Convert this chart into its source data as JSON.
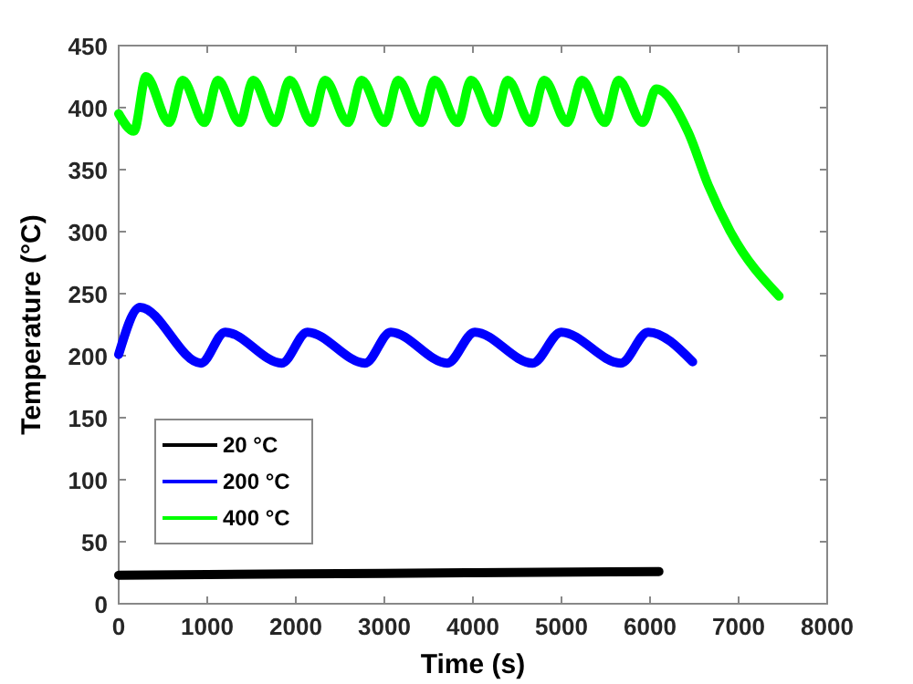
{
  "chart_data": {
    "type": "line",
    "xlabel": "Time (s)",
    "ylabel": "Temperature (°C)",
    "xlim": [
      0,
      8000
    ],
    "ylim": [
      0,
      450
    ],
    "xticks": [
      0,
      1000,
      2000,
      3000,
      4000,
      5000,
      6000,
      7000,
      8000
    ],
    "yticks": [
      0,
      50,
      100,
      150,
      200,
      250,
      300,
      350,
      400,
      450
    ],
    "legend": "bottom left",
    "grid": false,
    "series": [
      {
        "name": "20 °C",
        "color": "#000000",
        "x": [
          0,
          2000,
          4000,
          6100
        ],
        "values": [
          23,
          24,
          25,
          26
        ]
      },
      {
        "name": "200 °C",
        "color": "#0000ff",
        "x": [
          0,
          241,
          928,
          1203,
          1842,
          2131,
          2782,
          3072,
          3711,
          4021,
          4674,
          4997,
          5670,
          5979,
          6481
        ],
        "values": [
          201,
          239,
          194,
          219,
          194,
          219,
          194,
          219,
          194,
          219,
          194,
          219,
          194,
          219,
          195
        ]
      },
      {
        "name": "400 °C",
        "color": "#00ff00",
        "x": [
          0,
          172,
          309,
          570,
          722,
          969,
          1120,
          1368,
          1519,
          1766,
          1931,
          2179,
          2330,
          2591,
          2742,
          3004,
          3155,
          3416,
          3567,
          3828,
          3979,
          4241,
          4392,
          4653,
          4804,
          5065,
          5230,
          5491,
          5643,
          5918,
          6069,
          6426,
          6660,
          6907,
          7457
        ],
        "values": [
          395,
          381,
          425,
          388,
          422,
          388,
          422,
          388,
          422,
          388,
          422,
          388,
          422,
          388,
          422,
          388,
          422,
          388,
          422,
          388,
          422,
          388,
          422,
          388,
          422,
          388,
          422,
          388,
          422,
          388,
          415,
          381,
          337,
          300,
          248
        ]
      }
    ]
  }
}
